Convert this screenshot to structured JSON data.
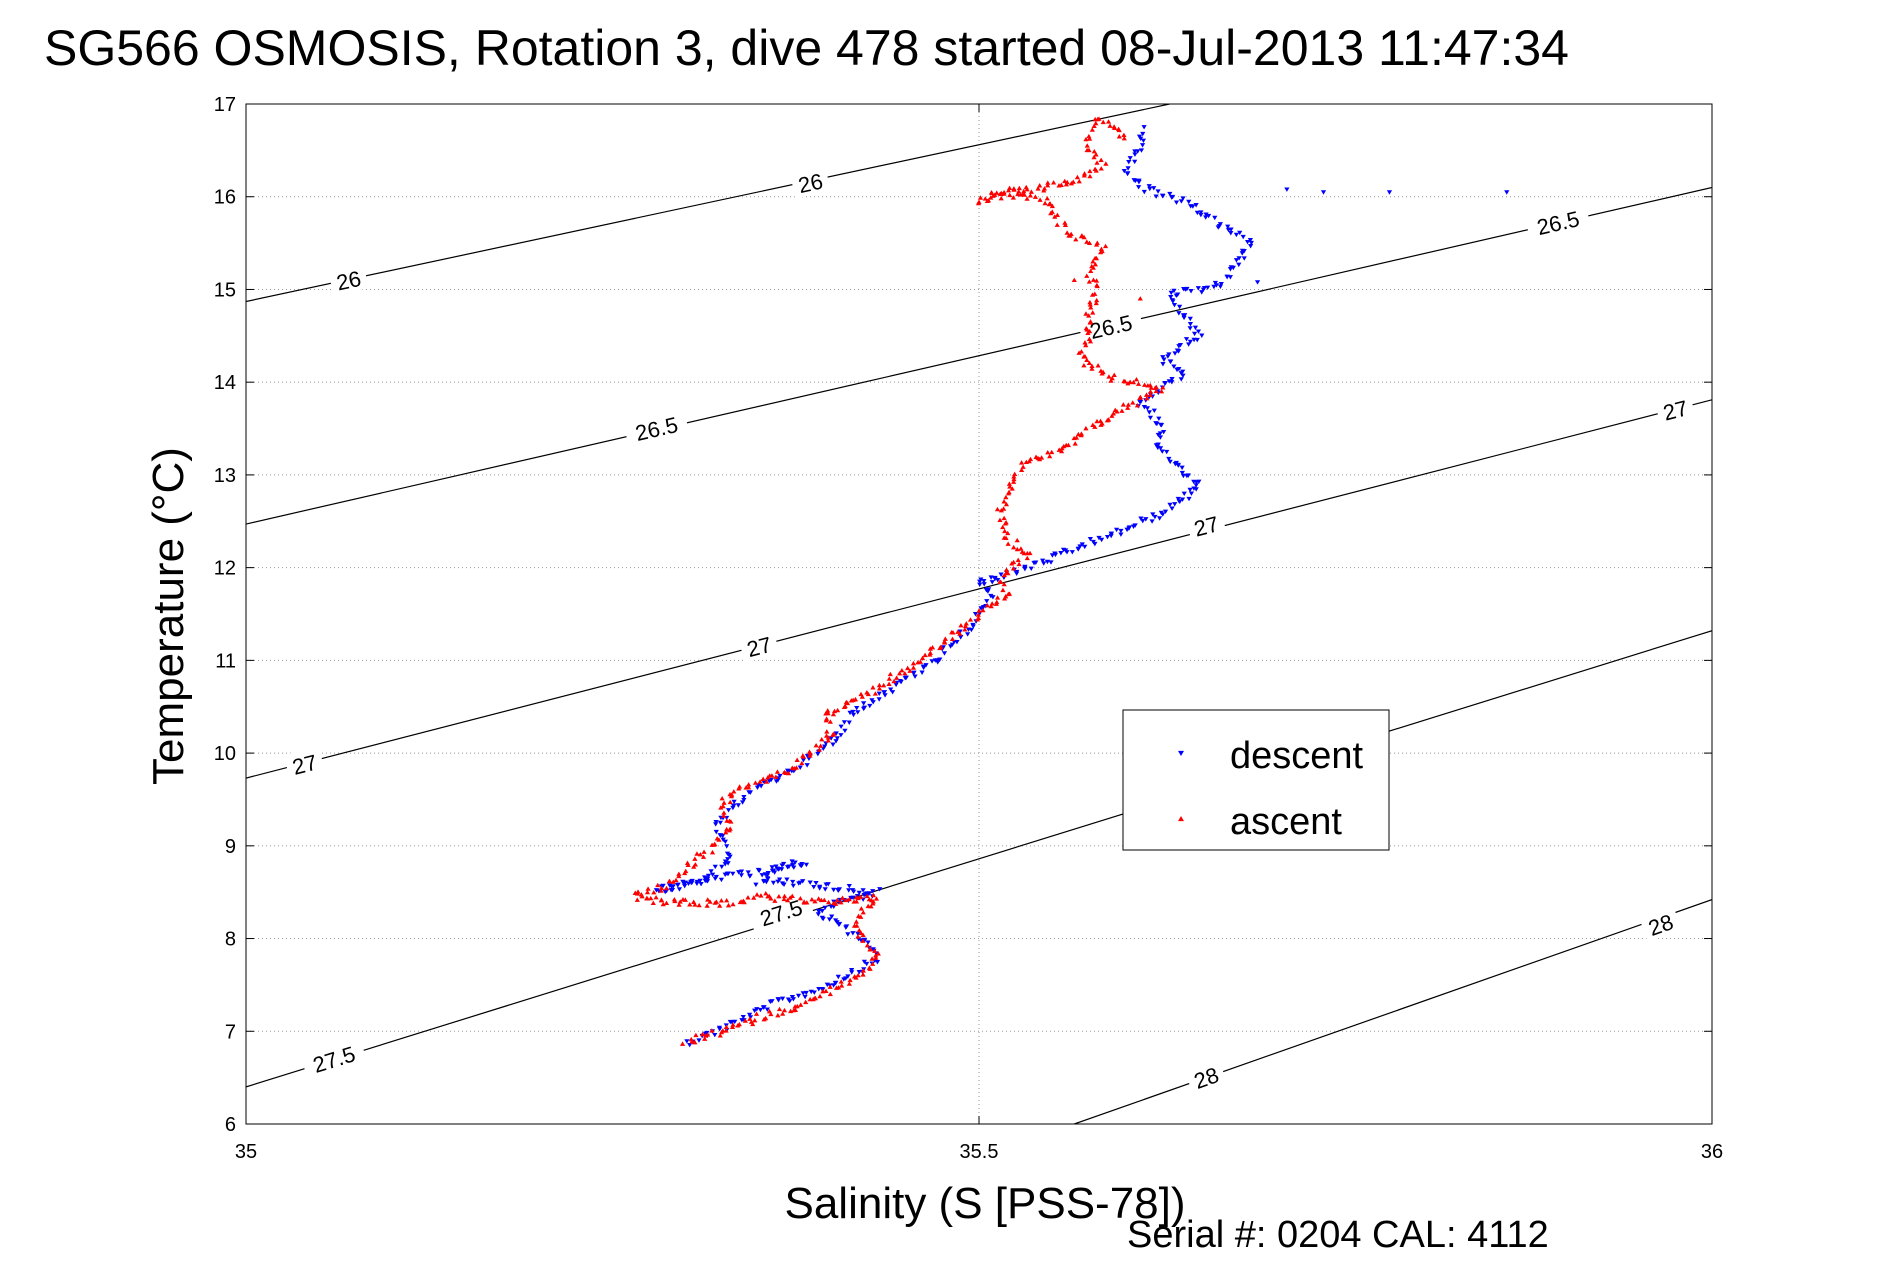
{
  "chart_data": {
    "type": "scatter",
    "title": "SG566 OSMOSIS, Rotation 3, dive 478 started 08-Jul-2013 11:47:34",
    "xlabel": "Salinity (S [PSS-78])",
    "ylabel": "Temperature (°C)",
    "xlim": [
      35,
      36
    ],
    "ylim": [
      6,
      17
    ],
    "x_ticks": [
      "35",
      "35.5",
      "36"
    ],
    "y_ticks": [
      "6",
      "7",
      "8",
      "9",
      "10",
      "11",
      "12",
      "13",
      "14",
      "15",
      "16",
      "17"
    ],
    "grid": true,
    "legend_position": "center-right",
    "footer": "Serial #: 0204  CAL: 4112",
    "density_contours": [
      {
        "level": "26",
        "start": [
          35.0,
          14.87
        ],
        "end": [
          35.63,
          17.0
        ],
        "labels": [
          {
            "text": "26",
            "s": 35.07,
            "t": 15.1
          },
          {
            "text": "26",
            "s": 35.385,
            "t": 16.15
          }
        ]
      },
      {
        "level": "26.5",
        "start": [
          35.0,
          12.47
        ],
        "end": [
          36.0,
          16.1
        ],
        "labels": [
          {
            "text": "26.5",
            "s": 35.28,
            "t": 13.5
          },
          {
            "text": "26.5",
            "s": 35.59,
            "t": 14.6
          },
          {
            "text": "26.5",
            "s": 35.895,
            "t": 15.72
          }
        ]
      },
      {
        "level": "27",
        "start": [
          35.0,
          9.73
        ],
        "end": [
          36.0,
          13.81
        ],
        "labels": [
          {
            "text": "27",
            "s": 35.04,
            "t": 9.88
          },
          {
            "text": "27",
            "s": 35.35,
            "t": 11.15
          },
          {
            "text": "27",
            "s": 35.655,
            "t": 12.45
          },
          {
            "text": "27",
            "s": 35.975,
            "t": 13.7
          }
        ]
      },
      {
        "level": "27.5",
        "start": [
          35.0,
          6.4
        ],
        "end": [
          36.0,
          11.32
        ],
        "labels": [
          {
            "text": "27.5",
            "s": 35.06,
            "t": 6.7
          },
          {
            "text": "27.5",
            "s": 35.365,
            "t": 8.28
          }
        ]
      },
      {
        "level": "28",
        "start": [
          35.565,
          6.0
        ],
        "end": [
          36.0,
          8.42
        ],
        "labels": [
          {
            "text": "28",
            "s": 35.655,
            "t": 6.5
          },
          {
            "text": "28",
            "s": 35.965,
            "t": 8.15
          }
        ]
      }
    ],
    "series": [
      {
        "name": "descent",
        "color": "#0000ff",
        "marker": "triangle-down",
        "path": [
          [
            35.3,
            6.88
          ],
          [
            35.32,
            7.0
          ],
          [
            35.34,
            7.15
          ],
          [
            35.36,
            7.3
          ],
          [
            35.39,
            7.45
          ],
          [
            35.41,
            7.6
          ],
          [
            35.43,
            7.78
          ],
          [
            35.425,
            7.95
          ],
          [
            35.405,
            8.15
          ],
          [
            35.39,
            8.3
          ],
          [
            35.41,
            8.42
          ],
          [
            35.43,
            8.5
          ],
          [
            35.405,
            8.55
          ],
          [
            35.375,
            8.6
          ],
          [
            35.35,
            8.62
          ],
          [
            35.36,
            8.75
          ],
          [
            35.38,
            8.82
          ],
          [
            35.355,
            8.72
          ],
          [
            35.32,
            8.66
          ],
          [
            35.3,
            8.58
          ],
          [
            35.28,
            8.52
          ],
          [
            35.315,
            8.65
          ],
          [
            35.33,
            8.85
          ],
          [
            35.325,
            9.05
          ],
          [
            35.32,
            9.2
          ],
          [
            35.335,
            9.45
          ],
          [
            35.345,
            9.6
          ],
          [
            35.37,
            9.8
          ],
          [
            35.39,
            10.0
          ],
          [
            35.405,
            10.2
          ],
          [
            35.41,
            10.4
          ],
          [
            35.43,
            10.6
          ],
          [
            35.45,
            10.8
          ],
          [
            35.47,
            11.0
          ],
          [
            35.49,
            11.3
          ],
          [
            35.5,
            11.5
          ],
          [
            35.51,
            11.7
          ],
          [
            35.5,
            11.85
          ],
          [
            35.515,
            11.9
          ],
          [
            35.55,
            12.1
          ],
          [
            35.59,
            12.35
          ],
          [
            35.62,
            12.55
          ],
          [
            35.65,
            12.85
          ],
          [
            35.64,
            13.05
          ],
          [
            35.62,
            13.3
          ],
          [
            35.625,
            13.55
          ],
          [
            35.61,
            13.78
          ],
          [
            35.63,
            14.0
          ],
          [
            35.64,
            14.1
          ],
          [
            35.625,
            14.25
          ],
          [
            35.65,
            14.5
          ],
          [
            35.64,
            14.75
          ],
          [
            35.63,
            14.95
          ],
          [
            35.665,
            15.05
          ],
          [
            35.685,
            15.5
          ],
          [
            35.64,
            15.95
          ],
          [
            35.61,
            16.1
          ],
          [
            35.6,
            16.3
          ],
          [
            35.61,
            16.55
          ],
          [
            35.615,
            16.75
          ]
        ],
        "extra": [
          [
            35.69,
            15.08
          ],
          [
            35.71,
            16.08
          ],
          [
            35.735,
            16.05
          ],
          [
            35.78,
            16.05
          ],
          [
            35.86,
            16.05
          ],
          [
            35.64,
            12.8
          ],
          [
            35.65,
            12.93
          ]
        ]
      },
      {
        "name": "ascent",
        "color": "#ff0000",
        "marker": "triangle-up",
        "path": [
          [
            35.3,
            6.88
          ],
          [
            35.33,
            7.02
          ],
          [
            35.35,
            7.15
          ],
          [
            35.38,
            7.28
          ],
          [
            35.4,
            7.45
          ],
          [
            35.42,
            7.6
          ],
          [
            35.43,
            7.8
          ],
          [
            35.42,
            8.0
          ],
          [
            35.415,
            8.2
          ],
          [
            35.43,
            8.45
          ],
          [
            35.405,
            8.4
          ],
          [
            35.375,
            8.42
          ],
          [
            35.35,
            8.45
          ],
          [
            35.335,
            8.38
          ],
          [
            35.31,
            8.38
          ],
          [
            35.28,
            8.4
          ],
          [
            35.265,
            8.45
          ],
          [
            35.29,
            8.6
          ],
          [
            35.31,
            8.9
          ],
          [
            35.32,
            9.0
          ],
          [
            35.33,
            9.2
          ],
          [
            35.325,
            9.45
          ],
          [
            35.34,
            9.65
          ],
          [
            35.37,
            9.8
          ],
          [
            35.385,
            10.0
          ],
          [
            35.4,
            10.2
          ],
          [
            35.395,
            10.4
          ],
          [
            35.42,
            10.6
          ],
          [
            35.44,
            10.8
          ],
          [
            35.46,
            11.0
          ],
          [
            35.48,
            11.25
          ],
          [
            35.5,
            11.5
          ],
          [
            35.52,
            11.7
          ],
          [
            35.515,
            11.9
          ],
          [
            35.525,
            12.05
          ],
          [
            35.535,
            12.15
          ],
          [
            35.52,
            12.3
          ],
          [
            35.515,
            12.6
          ],
          [
            35.52,
            12.85
          ],
          [
            35.53,
            13.1
          ],
          [
            35.555,
            13.25
          ],
          [
            35.57,
            13.45
          ],
          [
            35.59,
            13.65
          ],
          [
            35.61,
            13.8
          ],
          [
            35.625,
            13.95
          ],
          [
            35.59,
            14.05
          ],
          [
            35.57,
            14.25
          ],
          [
            35.575,
            14.5
          ],
          [
            35.575,
            14.75
          ],
          [
            35.58,
            15.0
          ],
          [
            35.575,
            15.2
          ],
          [
            35.585,
            15.45
          ],
          [
            35.56,
            15.6
          ],
          [
            35.545,
            15.95
          ],
          [
            35.52,
            16.1
          ],
          [
            35.5,
            15.95
          ],
          [
            35.57,
            16.2
          ],
          [
            35.585,
            16.35
          ],
          [
            35.575,
            16.5
          ],
          [
            35.575,
            16.72
          ],
          [
            35.58,
            16.82
          ],
          [
            35.59,
            16.78
          ],
          [
            35.6,
            16.6
          ]
        ],
        "extra": [
          [
            35.61,
            14.9
          ],
          [
            35.58,
            14.85
          ],
          [
            35.565,
            15.1
          ]
        ]
      }
    ]
  }
}
